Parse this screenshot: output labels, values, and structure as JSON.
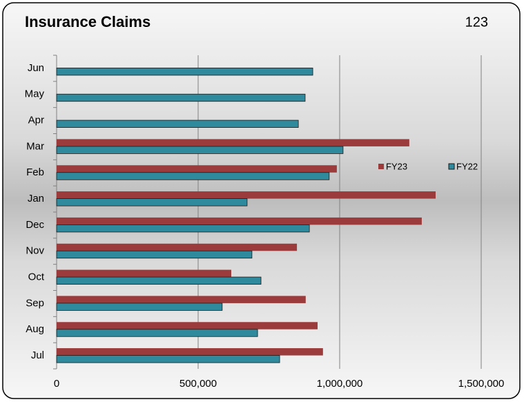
{
  "chart_data": {
    "type": "hbar",
    "title": "Insurance Claims",
    "annotation": "123",
    "categories": [
      "Jul",
      "Aug",
      "Sep",
      "Oct",
      "Nov",
      "Dec",
      "Jan",
      "Feb",
      "Mar",
      "Apr",
      "May",
      "Jun"
    ],
    "series": [
      {
        "name": "FY23",
        "color": "#9b3b3b",
        "values": [
          941000,
          922000,
          880000,
          617000,
          849000,
          1290000,
          1339000,
          990000,
          1246000,
          null,
          null,
          null
        ]
      },
      {
        "name": "FY22",
        "color": "#2f8a9e",
        "values": [
          788000,
          710000,
          585000,
          722000,
          690000,
          893000,
          673000,
          963000,
          1012000,
          854000,
          878000,
          905000
        ]
      }
    ],
    "xlim": [
      0,
      1500000
    ],
    "xticks": [
      0,
      {
        "value": 500000,
        "label": "500,000"
      },
      {
        "value": 1000000,
        "label": "1,000,000"
      },
      {
        "value": 1500000,
        "label": "1,500,000"
      }
    ],
    "grid": true,
    "legend": "right"
  }
}
